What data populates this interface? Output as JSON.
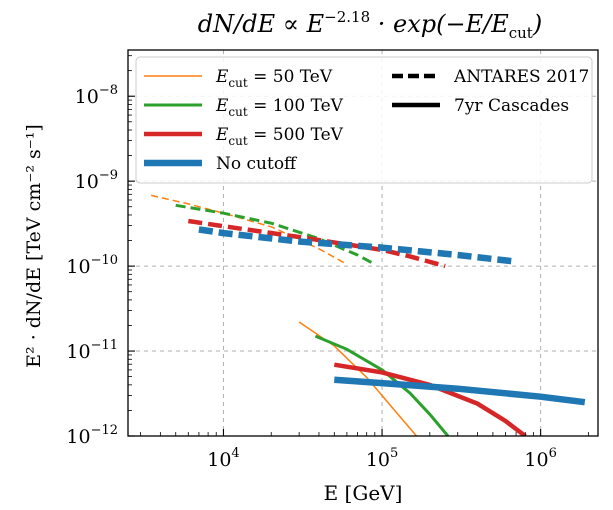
{
  "chart_data": {
    "type": "line",
    "title": "dN/dE ∝ E^−2.18 · exp(−E/E_cut)",
    "title_parts": {
      "lhs": "dN/dE ∝ E",
      "exponent": "−2.18",
      "rhs": " · exp(−E/E",
      "sub": "cut",
      "tail": ")"
    },
    "xlabel": "E [GeV]",
    "ylabel": "E² · dN/dE  [TeV cm⁻² s⁻¹]",
    "xscale": "log",
    "yscale": "log",
    "xlim": [
      2500,
      2300000
    ],
    "ylim": [
      1e-12,
      3.5e-08
    ],
    "grid": true,
    "legend_position": "top",
    "x_ticks": [
      {
        "value": 10000,
        "base": "10",
        "exp": "4"
      },
      {
        "value": 100000,
        "base": "10",
        "exp": "5"
      },
      {
        "value": 1000000,
        "base": "10",
        "exp": "6"
      }
    ],
    "y_ticks": [
      {
        "value": 1e-12,
        "base": "10",
        "exp": "−12"
      },
      {
        "value": 1e-11,
        "base": "10",
        "exp": "−11"
      },
      {
        "value": 1e-10,
        "base": "10",
        "exp": "−10"
      },
      {
        "value": 1e-09,
        "base": "10",
        "exp": "−9"
      },
      {
        "value": 1e-08,
        "base": "10",
        "exp": "−8"
      }
    ],
    "series": [
      {
        "name": "E_cut = 50 TeV",
        "label_sub": "cut",
        "label_value": " = 50 TeV",
        "color": "#ff7f0e",
        "width": 1.5,
        "antares": {
          "x": [
            3500,
            6000,
            10000,
            20000,
            40000,
            60000
          ],
          "y": [
            6.8e-10,
            5.4e-10,
            4.2e-10,
            2.9e-10,
            1.6e-10,
            1.05e-10
          ]
        },
        "cascades": {
          "x": [
            30000,
            50000,
            80000,
            120000,
            165000
          ],
          "y": [
            2.2e-11,
            1.15e-11,
            4.9e-12,
            2e-12,
            1e-12
          ]
        }
      },
      {
        "name": "E_cut = 100 TeV",
        "label_sub": "cut",
        "label_value": " = 100 TeV",
        "color": "#2ca02c",
        "width": 3,
        "antares": {
          "x": [
            5000,
            10000,
            20000,
            40000,
            70000,
            90000
          ],
          "y": [
            5.2e-10,
            4.2e-10,
            3.2e-10,
            2.1e-10,
            1.35e-10,
            1.05e-10
          ]
        },
        "cascades": {
          "x": [
            38000,
            60000,
            100000,
            150000,
            200000,
            260000
          ],
          "y": [
            1.5e-11,
            1.05e-11,
            6e-12,
            3.2e-12,
            1.8e-12,
            1e-12
          ]
        }
      },
      {
        "name": "E_cut = 500 TeV",
        "label_sub": "cut",
        "label_value": " = 500 TeV",
        "color": "#d62728",
        "width": 4.5,
        "antares": {
          "x": [
            6000,
            10000,
            30000,
            60000,
            100000,
            150000,
            250000
          ],
          "y": [
            3.4e-10,
            2.95e-10,
            2.2e-10,
            1.8e-10,
            1.55e-10,
            1.3e-10,
            1e-10
          ]
        },
        "cascades": {
          "x": [
            50000,
            100000,
            200000,
            400000,
            600000,
            800000
          ],
          "y": [
            6.9e-12,
            5.6e-12,
            4e-12,
            2.4e-12,
            1.5e-12,
            1e-12
          ]
        }
      },
      {
        "name": "No cutoff",
        "color": "#1f77b4",
        "width": 6.5,
        "antares": {
          "x": [
            7000,
            10000,
            30000,
            100000,
            300000,
            700000
          ],
          "y": [
            2.7e-10,
            2.45e-10,
            1.95e-10,
            1.65e-10,
            1.35e-10,
            1.13e-10
          ]
        },
        "cascades": {
          "x": [
            50000,
            100000,
            300000,
            1000000,
            1900000
          ],
          "y": [
            4.6e-12,
            4.2e-12,
            3.6e-12,
            2.9e-12,
            2.5e-12
          ]
        }
      }
    ],
    "style_legend": [
      {
        "name": "ANTARES 2017",
        "linestyle": "dashed"
      },
      {
        "name": "7yr Cascades",
        "linestyle": "solid"
      }
    ]
  }
}
